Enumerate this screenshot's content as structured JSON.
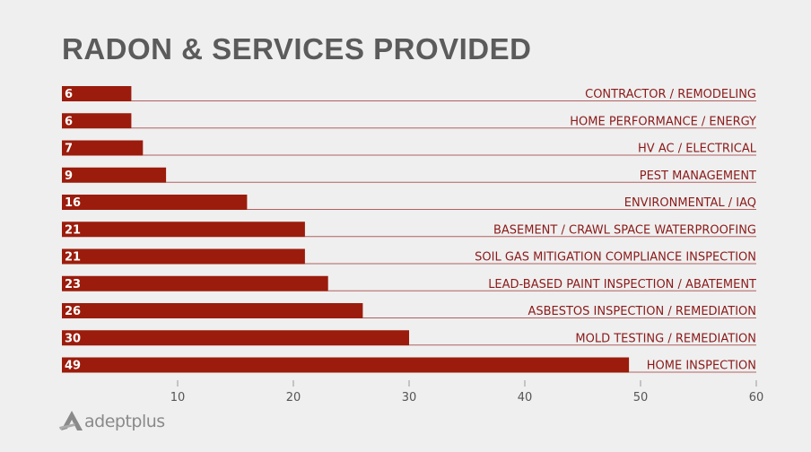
{
  "chart_data": {
    "type": "bar",
    "orientation": "horizontal",
    "title": "RADON & SERVICES PROVIDED",
    "categories": [
      "CONTRACTOR / REMODELING",
      "HOME PERFORMANCE /  ENERGY",
      "HV AC / ELECTRICAL",
      "PEST MANAGEMENT",
      "ENVIRONMENTAL / IAQ",
      "BASEMENT / CRAWL SPACE WATERPROOFING",
      "SOIL GAS MITIGATION COMPLIANCE INSPECTION",
      "LEAD-BASED PAINT INSPECTION / ABATEMENT",
      "ASBESTOS INSPECTION / REMEDIATION",
      "MOLD TESTING / REMEDIATION",
      "HOME INSPECTION"
    ],
    "values": [
      6,
      6,
      7,
      9,
      16,
      21,
      21,
      23,
      26,
      30,
      49
    ],
    "xlim": [
      0,
      60
    ],
    "xticks": [
      10,
      20,
      30,
      40,
      50,
      60
    ],
    "grid": false,
    "legend": "none",
    "colors": {
      "bar": "#9b1c0c",
      "label": "#8b1a1a",
      "rule": "#b06060",
      "title": "#5b5b5b",
      "axis": "#555555"
    }
  },
  "logo": {
    "text": "adeptplus"
  }
}
